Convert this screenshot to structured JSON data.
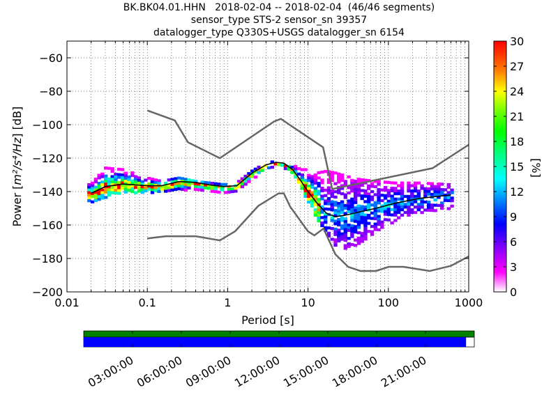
{
  "title_lines": [
    "BK.BK04.01.HHN   2018-02-04 -- 2018-02-04  (46/46 segments)",
    "sensor_type STS-2 sensor_sn 39357",
    "datalogger_type Q330S+USGS datalogger_sn 6154"
  ],
  "chart_data": {
    "type": "heatmap",
    "xlabel": "Period [s]",
    "ylabel_prefix": "Power [",
    "ylabel_units": "m²/s⁴/Hz",
    "ylabel_suffix": "] [dB]",
    "xscale": "log",
    "xlim": [
      0.01,
      1000
    ],
    "ylim": [
      -200,
      -50
    ],
    "x_ticks": [
      0.01,
      0.1,
      1,
      10,
      100,
      1000
    ],
    "x_tick_labels": [
      "0.01",
      "0.1",
      "1",
      "10",
      "100",
      "1000"
    ],
    "y_ticks": [
      -200,
      -180,
      -160,
      -140,
      -120,
      -100,
      -80,
      -60
    ],
    "y_tick_labels": [
      "−200",
      "−180",
      "−160",
      "−140",
      "−120",
      "−100",
      "−80",
      "−60"
    ],
    "grid": "dotted",
    "colorbar": {
      "label": "[%]",
      "range": [
        0,
        30
      ],
      "ticks": [
        0,
        3,
        6,
        9,
        12,
        15,
        18,
        21,
        24,
        27,
        30
      ],
      "tick_labels": [
        "0",
        "3",
        "6",
        "9",
        "12",
        "15",
        "18",
        "21",
        "24",
        "27",
        "30"
      ]
    },
    "noise_model_high": {
      "x": [
        0.1,
        0.22,
        0.32,
        0.8,
        3.8,
        4.6,
        6.3,
        15.4,
        20,
        354.8,
        1000
      ],
      "y": [
        -91.5,
        -97.4,
        -110.5,
        -120,
        -98,
        -96.5,
        -101,
        -113.5,
        -138.5,
        -126,
        -112
      ]
    },
    "noise_model_low": {
      "x": [
        0.1,
        0.17,
        0.4,
        0.8,
        1.24,
        2.4,
        4.3,
        5.0,
        6.0,
        10.0,
        12.0,
        15.6,
        21.9,
        31.6,
        45.0,
        70.0,
        101.0,
        154.0,
        328.0,
        600.0,
        1000
      ],
      "y": [
        -168,
        -166.7,
        -166.7,
        -169.2,
        -163.7,
        -148.6,
        -141.1,
        -141.1,
        -149.0,
        -163.8,
        -166.2,
        -162.1,
        -177.5,
        -185.0,
        -187.5,
        -187.5,
        -185.0,
        -185.0,
        -187.5,
        -184.4,
        -178.8
      ]
    },
    "mode_curve": {
      "x": [
        0.02,
        0.03,
        0.05,
        0.1,
        0.15,
        0.25,
        0.4,
        0.6,
        0.9,
        1.3,
        2.0,
        3.0,
        4.0,
        5.0,
        6.5,
        8.0,
        10.0,
        13.0,
        17.0,
        22.0,
        30.0,
        45.0,
        70.0,
        120.0,
        250.0,
        600.0
      ],
      "y": [
        -141,
        -137,
        -135.5,
        -136.5,
        -136.5,
        -134,
        -134.5,
        -136,
        -137,
        -136.5,
        -129,
        -124,
        -122.5,
        -123,
        -127,
        -133,
        -140,
        -147,
        -153,
        -155,
        -154,
        -152,
        -150,
        -147,
        -144,
        -142
      ]
    },
    "band_upper": {
      "x": [
        0.02,
        0.03,
        0.05,
        0.1,
        0.15,
        0.25,
        0.4,
        0.6,
        0.9,
        1.3,
        2.0,
        3.0,
        4.0,
        5.0,
        6.5,
        8.0,
        10.0,
        13.0,
        17.0,
        22.0,
        30.0,
        45.0,
        70.0,
        120.0,
        250.0,
        600.0
      ],
      "y": [
        -135,
        -125,
        -126,
        -131,
        -133,
        -131,
        -133,
        -134,
        -135,
        -134,
        -127,
        -122,
        -121,
        -122,
        -123,
        -126,
        -126,
        -128,
        -127,
        -128,
        -130,
        -132,
        -133,
        -134,
        -134,
        -135
      ]
    },
    "band_lower": {
      "x": [
        0.02,
        0.03,
        0.05,
        0.1,
        0.15,
        0.25,
        0.4,
        0.6,
        0.9,
        1.3,
        2.0,
        3.0,
        4.0,
        5.0,
        6.5,
        8.0,
        10.0,
        13.0,
        17.0,
        22.0,
        30.0,
        45.0,
        70.0,
        120.0,
        250.0,
        600.0
      ],
      "y": [
        -146,
        -143,
        -140,
        -140,
        -140,
        -139,
        -139,
        -139,
        -140,
        -139,
        -132,
        -127,
        -124,
        -125,
        -129,
        -135,
        -146,
        -156,
        -164,
        -172,
        -174,
        -170,
        -164,
        -157,
        -152,
        -150
      ]
    },
    "timeline": {
      "labels": [
        "03:00:00",
        "06:00:00",
        "09:00:00",
        "12:00:00",
        "15:00:00",
        "18:00:00",
        "21:00:00"
      ],
      "label_hours": [
        3,
        6,
        9,
        12,
        15,
        18,
        21
      ],
      "span_hours": 24,
      "coverage_fraction": 0.979,
      "top_bar_color": "#008000",
      "bottom_bar_color": "#0000ff"
    }
  }
}
